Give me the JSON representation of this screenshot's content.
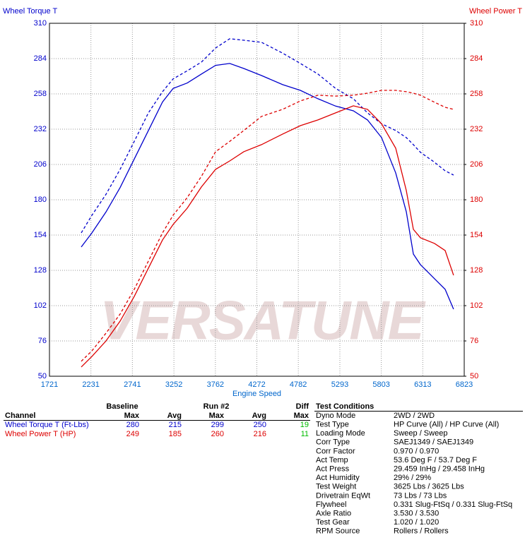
{
  "chart_data": {
    "type": "line",
    "y_label": "Wheel Torque T",
    "y2_label": "Wheel Power T",
    "x_label": "Engine Speed",
    "watermark": "VERSATUNE",
    "xlim": [
      1721,
      6823
    ],
    "xticks": [
      1721,
      2231,
      2741,
      3252,
      3762,
      4272,
      4782,
      5293,
      5803,
      6313,
      6823
    ],
    "ylim": [
      50,
      310
    ],
    "yticks": [
      50,
      76,
      102,
      128,
      154,
      180,
      206,
      232,
      258,
      284,
      310
    ],
    "y2lim": [
      50,
      310
    ],
    "y2ticks": [
      50,
      76,
      102,
      128,
      154,
      180,
      206,
      232,
      258,
      284,
      310
    ],
    "grid": true,
    "y_color": "#0000cc",
    "y2_color": "#dd0000",
    "x_color": "#0066cc",
    "x": [
      2112,
      2243,
      2416,
      2590,
      2764,
      2938,
      3112,
      3242,
      3416,
      3590,
      3764,
      3938,
      4111,
      4329,
      4589,
      4807,
      5024,
      5241,
      5459,
      5633,
      5806,
      5980,
      6110,
      6197,
      6284,
      6458,
      6588,
      6692
    ],
    "series": [
      {
        "color": "#0000cc",
        "dashed": false,
        "axis": "y",
        "values": [
          145.2,
          155.6,
          171,
          189,
          210,
          231,
          252,
          262,
          266,
          272.6,
          279,
          280.4,
          276.7,
          271.5,
          264.8,
          260.6,
          254.4,
          249,
          245.5,
          238.8,
          225.8,
          199.8,
          171.2,
          140,
          132.2,
          121.8,
          114,
          99.4
        ]
      },
      {
        "color": "#0000cc",
        "dashed": true,
        "axis": "y",
        "values": [
          155.6,
          168.6,
          184,
          202.4,
          223,
          244,
          259.6,
          269,
          275,
          281.4,
          291.8,
          298.6,
          297.5,
          296,
          288,
          280.4,
          272.6,
          262,
          254.4,
          244,
          236,
          231,
          225.8,
          220.6,
          215,
          207.6,
          201.3,
          198.2
        ]
      },
      {
        "color": "#dd0000",
        "dashed": false,
        "axis": "y2",
        "values": [
          56.8,
          64.6,
          76,
          90.6,
          108.8,
          129.6,
          150.4,
          161.8,
          173.8,
          189.4,
          202.4,
          208.6,
          215.4,
          220.6,
          228.4,
          234.6,
          238.8,
          244,
          249.2,
          246.6,
          236,
          218,
          186.8,
          158.2,
          152,
          147.8,
          142.6,
          124.4
        ]
      },
      {
        "color": "#dd0000",
        "dashed": true,
        "axis": "y2",
        "values": [
          61,
          68.7,
          81.7,
          95.8,
          114,
          134.8,
          155.6,
          168.6,
          181.6,
          197.2,
          215.4,
          223,
          231,
          241.4,
          246.6,
          252.8,
          257,
          256.4,
          257,
          258.5,
          260.6,
          260.6,
          259.6,
          258.5,
          257,
          251.8,
          248.1,
          246.6
        ]
      }
    ]
  },
  "table": {
    "group_header": [
      "Baseline",
      "Run #2",
      "Diff"
    ],
    "columns": [
      "Channel",
      "Max",
      "Avg",
      "Max",
      "Avg",
      "Max"
    ],
    "rows": [
      {
        "color": "#0000cc",
        "cells": [
          "Wheel Torque T (Ft-Lbs)",
          "280",
          "215",
          "299",
          "250",
          "19"
        ]
      },
      {
        "color": "#dd0000",
        "cells": [
          "Wheel Power T (HP)",
          "249",
          "185",
          "260",
          "216",
          "11"
        ]
      }
    ],
    "diff_color": "#00bb00"
  },
  "test_conditions": {
    "title": "Test Conditions",
    "items": [
      [
        "Dyno Mode",
        "2WD / 2WD"
      ],
      [
        "Test Type",
        "HP Curve (All) / HP Curve (All)"
      ],
      [
        "Loading Mode",
        "Sweep / Sweep"
      ],
      [
        "Corr Type",
        "SAEJ1349 / SAEJ1349"
      ],
      [
        "Corr Factor",
        "0.970 / 0.970"
      ],
      [
        "Act Temp",
        "53.6 Deg F / 53.7 Deg F"
      ],
      [
        "Act Press",
        "29.459 InHg / 29.458 InHg"
      ],
      [
        "Act Humidity",
        "29% / 29%"
      ],
      [
        "Test Weight",
        "3625 Lbs / 3625 Lbs"
      ],
      [
        "Drivetrain EqWt",
        "73 Lbs / 73 Lbs"
      ],
      [
        "Flywheel",
        "0.331 Slug-FtSq / 0.331 Slug-FtSq"
      ],
      [
        "Axle Ratio",
        "3.530 / 3.530"
      ],
      [
        "Test Gear",
        "1.020 / 1.020"
      ],
      [
        "RPM Source",
        "Rollers / Rollers"
      ]
    ]
  }
}
